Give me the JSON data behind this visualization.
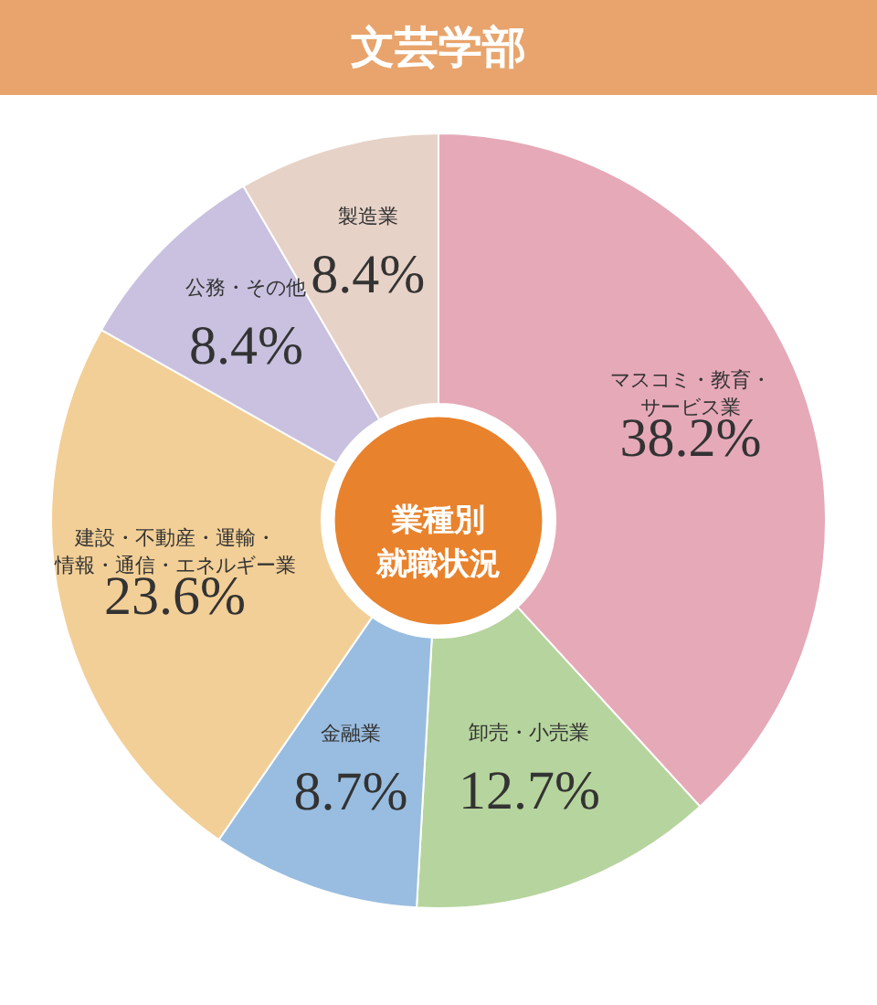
{
  "chart_data": {
    "type": "donut",
    "title": "文芸学部",
    "subtitle": "業種別就職状況",
    "categories": [
      "マスコミ・教育・サービス業",
      "卸売・小売業",
      "金融業",
      "建設・不動産・運輸・情報・通信・エネルギー業",
      "公務・その他",
      "製造業"
    ],
    "values": [
      38.2,
      12.7,
      8.7,
      23.6,
      8.4,
      8.4
    ],
    "value_labels": [
      "38.2%",
      "12.7%",
      "8.7%",
      "23.6%",
      "8.4%",
      "8.4%"
    ],
    "colors": [
      "#e6a9b8",
      "#b6d49d",
      "#99bde0",
      "#f2cf97",
      "#c9c1df",
      "#e7d2c7"
    ]
  }
}
